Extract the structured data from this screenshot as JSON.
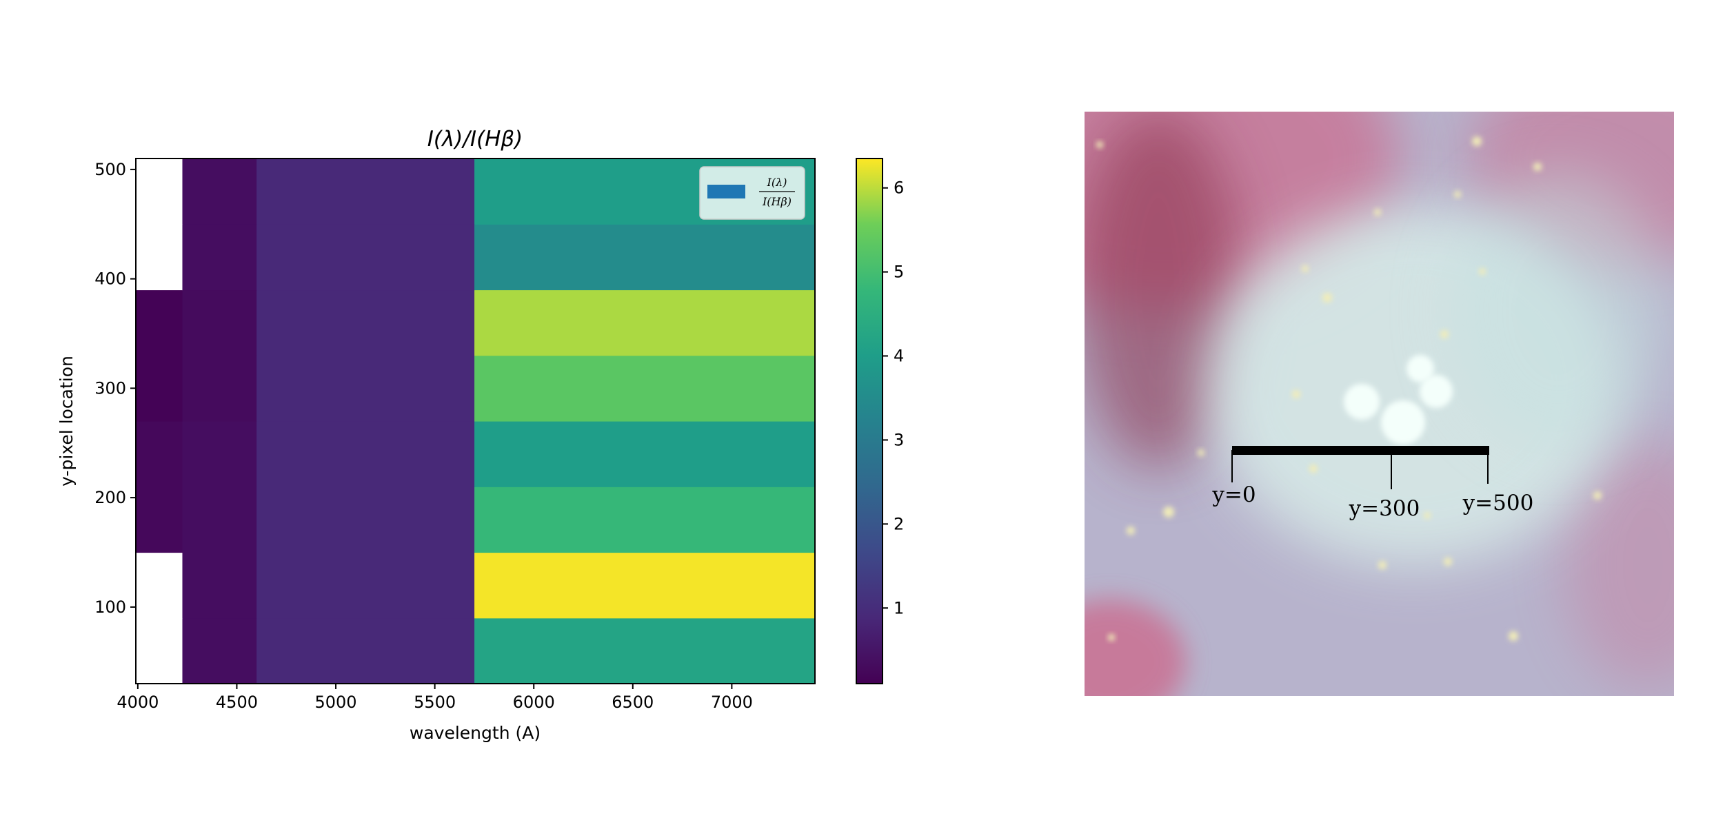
{
  "chart_data": {
    "type": "heatmap",
    "title": "I(λ)/I(Hβ)",
    "xlabel": "wavelength (A)",
    "ylabel": "y-pixel location",
    "xlim": [
      3990,
      7420
    ],
    "ylim": [
      30,
      510
    ],
    "x_ticks": [
      4000,
      4500,
      5000,
      5500,
      6000,
      6500,
      7000
    ],
    "y_ticks": [
      100,
      200,
      300,
      400,
      500
    ],
    "x_bins": [
      3990,
      4225,
      4600,
      5700,
      7420
    ],
    "y_bins": [
      30,
      90,
      150,
      210,
      270,
      330,
      390,
      450,
      510
    ],
    "values": [
      [
        null,
        0.35,
        0.9,
        4.2
      ],
      [
        null,
        0.35,
        0.9,
        6.3
      ],
      [
        0.25,
        0.35,
        0.9,
        4.8
      ],
      [
        0.25,
        0.35,
        0.9,
        4.0
      ],
      [
        0.15,
        0.3,
        0.9,
        5.3
      ],
      [
        0.15,
        0.3,
        0.9,
        5.9
      ],
      [
        null,
        0.35,
        0.9,
        3.5
      ],
      [
        null,
        0.35,
        0.9,
        4.0
      ]
    ],
    "colorbar": {
      "colormap": "viridis",
      "range": [
        0.1,
        6.35
      ],
      "ticks": [
        1,
        2,
        3,
        4,
        5,
        6
      ]
    },
    "legend": {
      "location": "upper right",
      "label_numerator": "I(λ)",
      "label_denominator": "I(Hβ)",
      "patch_color": "#1f77b4"
    },
    "missing_color": "#ffffff"
  },
  "nebula_image": {
    "labels": [
      "y=0",
      "y=300",
      "y=500"
    ],
    "colors": {
      "base": "#b7b3cc",
      "core": "#d8ece8",
      "pink": "#d2547a",
      "dark_red": "#8a2f48",
      "slit": "#000000"
    }
  }
}
